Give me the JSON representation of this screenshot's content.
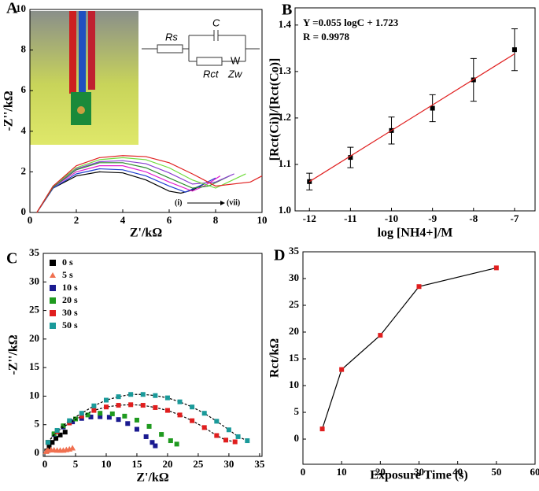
{
  "chart_data": [
    {
      "type": "line",
      "panel_label": "A",
      "x_label": "Z'/kΩ",
      "y_label": "-Z''/kΩ",
      "xlim": [
        0,
        10
      ],
      "ylim": [
        0,
        10
      ],
      "xticks": [
        0,
        2,
        4,
        6,
        8,
        10
      ],
      "yticks": [
        0,
        2,
        4,
        6,
        8,
        10
      ],
      "annotations": [
        "(i)",
        "(vii)"
      ],
      "circuit_labels": [
        "Rs",
        "C",
        "Rct",
        "W",
        "Zw"
      ],
      "series": [
        {
          "color": "#000000",
          "x": [
            0.3,
            1,
            2,
            3,
            4,
            5,
            6,
            6.5,
            7,
            7.5
          ],
          "values": [
            0,
            1.2,
            1.8,
            2.0,
            1.95,
            1.6,
            1.05,
            0.95,
            1.1,
            1.4
          ]
        },
        {
          "color": "#1f3fd0",
          "x": [
            0.3,
            1,
            2,
            3,
            4,
            5,
            6,
            6.7,
            7.3,
            8
          ],
          "values": [
            0,
            1.2,
            1.9,
            2.15,
            2.1,
            1.8,
            1.3,
            1.0,
            1.3,
            1.7
          ]
        },
        {
          "color": "#e020d0",
          "x": [
            0.3,
            1,
            2,
            3,
            4,
            5,
            6,
            7,
            7.5,
            8.2
          ],
          "values": [
            0,
            1.25,
            2.0,
            2.3,
            2.3,
            2.0,
            1.5,
            1.05,
            1.3,
            1.8
          ]
        },
        {
          "color": "#2e8b2e",
          "x": [
            0.3,
            1,
            2,
            3,
            4,
            5,
            6,
            7,
            7.7,
            8.6
          ],
          "values": [
            0,
            1.25,
            2.1,
            2.45,
            2.45,
            2.2,
            1.7,
            1.2,
            1.3,
            1.8
          ]
        },
        {
          "color": "#8a3fd0",
          "x": [
            0.3,
            1,
            2,
            3,
            4,
            5,
            6,
            7,
            8,
            8.8
          ],
          "values": [
            0,
            1.3,
            2.15,
            2.5,
            2.55,
            2.4,
            1.95,
            1.4,
            1.5,
            1.9
          ]
        },
        {
          "color": "#6fdc3c",
          "x": [
            0.3,
            1,
            2,
            3,
            4,
            5,
            6,
            7,
            8,
            9.3
          ],
          "values": [
            0,
            1.3,
            2.2,
            2.6,
            2.7,
            2.6,
            2.2,
            1.6,
            1.2,
            1.9
          ]
        },
        {
          "color": "#e02020",
          "x": [
            0.3,
            1,
            2,
            3,
            4,
            5,
            6,
            7,
            8,
            9.5,
            10
          ],
          "values": [
            0,
            1.3,
            2.3,
            2.7,
            2.8,
            2.75,
            2.45,
            1.9,
            1.3,
            1.5,
            1.8
          ]
        }
      ]
    },
    {
      "type": "scatter",
      "panel_label": "B",
      "x_label": "log [NH4+]/M",
      "y_label": "[Rct(Ci)]/[Rct(Co)]",
      "xlim": [
        -12.35,
        -6.5
      ],
      "ylim": [
        1.0,
        1.437
      ],
      "xticks": [
        -12,
        -11,
        -10,
        -9,
        -8,
        -7
      ],
      "yticks": [
        {
          "value": 1,
          "label": "1.0"
        },
        1.1,
        1.2,
        1.3,
        1.4
      ],
      "annotations": [
        "Y =0.055 logC + 1.723",
        "R = 0.9978"
      ],
      "series": [
        {
          "color": "#000000",
          "x": [
            -12,
            -11,
            -10,
            -9,
            -8,
            -7
          ],
          "values": [
            1.063,
            1.115,
            1.173,
            1.221,
            1.282,
            1.347
          ],
          "errors": [
            0.018,
            0.022,
            0.029,
            0.029,
            0.046,
            0.045
          ],
          "marker": "square"
        }
      ],
      "fit": {
        "color": "#e02020",
        "x": [
          -12,
          -7
        ],
        "values": [
          1.063,
          1.338
        ]
      }
    },
    {
      "type": "scatter",
      "panel_label": "C",
      "x_label": "Z'/kΩ",
      "y_label": "-Z''/kΩ",
      "xlim": [
        -0.26,
        35.4
      ],
      "ylim": [
        -0.55,
        35
      ],
      "xticks": [
        0,
        5,
        10,
        15,
        20,
        25,
        30,
        35
      ],
      "yticks": [
        0,
        5,
        10,
        15,
        20,
        25,
        30,
        35
      ],
      "series": [
        {
          "name": "0 s",
          "color": "#000000",
          "marker": "square",
          "x": [
            0.3,
            0.7,
            1.2,
            1.8,
            2.5,
            3.3
          ],
          "values": [
            0.4,
            1.1,
            1.9,
            2.6,
            3.2,
            3.7
          ]
        },
        {
          "name": "5 s",
          "color": "#f07050",
          "marker": "triangle",
          "x": [
            0.2,
            0.5,
            1,
            1.5,
            2,
            2.5,
            3,
            3.5,
            4,
            4.5
          ],
          "values": [
            0.3,
            0.5,
            0.6,
            0.55,
            0.5,
            0.5,
            0.5,
            0.6,
            0.7,
            0.9
          ]
        },
        {
          "name": "10 s",
          "color": "#1a1a90",
          "marker": "square",
          "x": [
            0.5,
            1.5,
            3,
            4.5,
            6,
            7.5,
            9,
            10.5,
            12,
            13.5,
            15,
            16.5,
            17.5,
            18
          ],
          "values": [
            1.9,
            3.3,
            4.6,
            5.5,
            6.1,
            6.35,
            6.4,
            6.3,
            5.9,
            5.2,
            4.2,
            2.9,
            1.9,
            1.3
          ]
        },
        {
          "name": "20 s",
          "color": "#1f9a1f",
          "marker": "square",
          "x": [
            0.5,
            1.5,
            3,
            5,
            7,
            9,
            11,
            13,
            15,
            17,
            19,
            20.5,
            21.5
          ],
          "values": [
            1.9,
            3.4,
            4.8,
            6.0,
            6.7,
            7.0,
            6.9,
            6.5,
            5.8,
            4.7,
            3.3,
            2.2,
            1.6
          ]
        },
        {
          "name": "30 s",
          "color": "#e01e1e",
          "marker": "square",
          "connect": true,
          "x": [
            0.5,
            2,
            4,
            6,
            8,
            10,
            12,
            14,
            16,
            18,
            20,
            22,
            24,
            26,
            28,
            29.5,
            31
          ],
          "values": [
            1.9,
            3.8,
            5.3,
            6.5,
            7.5,
            8.1,
            8.4,
            8.5,
            8.4,
            8.0,
            7.5,
            6.7,
            5.7,
            4.5,
            3.1,
            2.3,
            2.0
          ]
        },
        {
          "name": "50 s",
          "color": "#1a9a9a",
          "marker": "square",
          "connect": true,
          "x": [
            0.5,
            2,
            4,
            6,
            8,
            10,
            12,
            14,
            16,
            18,
            20,
            22,
            24,
            26,
            28,
            30,
            31.5,
            33
          ],
          "values": [
            1.9,
            4.0,
            5.7,
            7.0,
            8.3,
            9.3,
            9.9,
            10.3,
            10.3,
            10.1,
            9.7,
            9.0,
            8.1,
            7.0,
            5.6,
            4.1,
            2.9,
            2.2
          ]
        }
      ]
    },
    {
      "type": "line",
      "panel_label": "D",
      "x_label": "Exposure Time (s)",
      "y_label": "Rct/kΩ",
      "xlim": [
        0,
        60
      ],
      "ylim": [
        -4.7,
        35
      ],
      "xticks": [
        0,
        10,
        20,
        30,
        40,
        50,
        60
      ],
      "yticks": [
        0,
        5,
        10,
        15,
        20,
        25,
        30,
        35
      ],
      "series": [
        {
          "color": "#e01e1e",
          "marker": "square",
          "x": [
            5,
            10,
            20,
            30,
            50
          ],
          "values": [
            1.9,
            13,
            19.4,
            28.5,
            32
          ]
        }
      ]
    }
  ]
}
